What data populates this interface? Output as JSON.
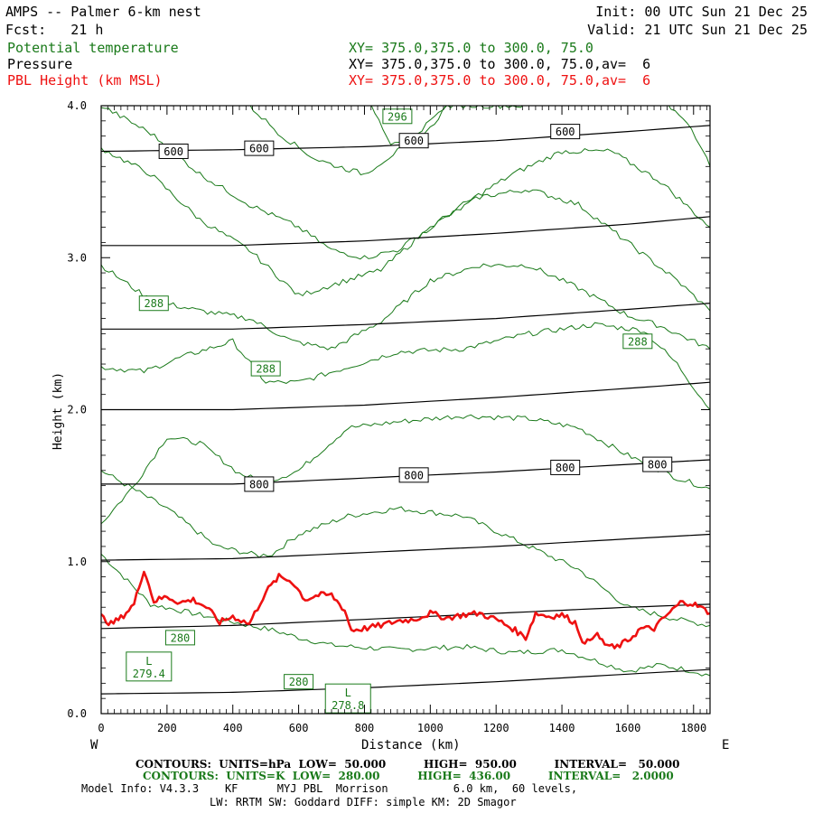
{
  "header": {
    "title": "AMPS -- Palmer 6-km nest",
    "init": "Init: 00 UTC Sun 21 Dec 25",
    "fcst": "Fcst:   21 h",
    "valid": "Valid: 21 UTC Sun 21 Dec 25",
    "field1_name": "Potential temperature",
    "field1_xy": "XY= 375.0,375.0 to 300.0, 75.0",
    "field2_name": "Pressure",
    "field2_xy": "XY= 375.0,375.0 to 300.0, 75.0,av=  6",
    "field3_name": "PBL Height (km MSL)",
    "field3_xy": "XY= 375.0,375.0 to 300.0, 75.0,av=  6"
  },
  "colors": {
    "theta": "#1a7a1a",
    "pressure": "#000000",
    "pbl": "#ee1111"
  },
  "chart_data": {
    "type": "line",
    "title": "AMPS -- Palmer 6-km nest",
    "xlabel": "Distance (km)",
    "ylabel": "Height (km)",
    "xlim": [
      0,
      1850
    ],
    "ylim": [
      0,
      4.0
    ],
    "x_ticks": [
      0,
      200,
      400,
      600,
      800,
      1000,
      1200,
      1400,
      1600,
      1800
    ],
    "y_ticks": [
      0.0,
      1.0,
      2.0,
      3.0,
      4.0
    ],
    "y_tick_labels": [
      "0.0",
      "1.0",
      "2.0",
      "3.0",
      "4.0"
    ],
    "x_end_labels": {
      "left": "W",
      "right": "E"
    },
    "pressure_contours": [
      {
        "label": "",
        "x": [
          0,
          400,
          800,
          1200,
          1600,
          1850
        ],
        "y": [
          0.13,
          0.14,
          0.17,
          0.21,
          0.26,
          0.29
        ]
      },
      {
        "label": "",
        "x": [
          0,
          400,
          800,
          1200,
          1600,
          1850
        ],
        "y": [
          0.56,
          0.58,
          0.62,
          0.66,
          0.7,
          0.72
        ]
      },
      {
        "label": "",
        "x": [
          0,
          400,
          800,
          1200,
          1600,
          1850
        ],
        "y": [
          1.01,
          1.02,
          1.06,
          1.1,
          1.15,
          1.18
        ]
      },
      {
        "label": "800",
        "x": [
          0,
          400,
          800,
          1200,
          1600,
          1850
        ],
        "y": [
          1.51,
          1.51,
          1.55,
          1.59,
          1.64,
          1.67
        ]
      },
      {
        "label": "",
        "x": [
          0,
          400,
          800,
          1200,
          1600,
          1850
        ],
        "y": [
          2.0,
          2.0,
          2.03,
          2.08,
          2.14,
          2.18
        ]
      },
      {
        "label": "",
        "x": [
          0,
          400,
          800,
          1200,
          1600,
          1850
        ],
        "y": [
          2.53,
          2.53,
          2.56,
          2.6,
          2.66,
          2.7
        ]
      },
      {
        "label": "",
        "x": [
          0,
          400,
          800,
          1200,
          1600,
          1850
        ],
        "y": [
          3.08,
          3.08,
          3.11,
          3.16,
          3.22,
          3.27
        ]
      },
      {
        "label": "600",
        "x": [
          0,
          400,
          800,
          1200,
          1600,
          1850
        ],
        "y": [
          3.7,
          3.71,
          3.73,
          3.77,
          3.83,
          3.87
        ]
      }
    ],
    "pressure_labels": [
      {
        "text": "600",
        "x": 220,
        "y": 3.7
      },
      {
        "text": "600",
        "x": 480,
        "y": 3.72
      },
      {
        "text": "600",
        "x": 950,
        "y": 3.77
      },
      {
        "text": "600",
        "x": 1410,
        "y": 3.83
      },
      {
        "text": "800",
        "x": 480,
        "y": 1.51
      },
      {
        "text": "800",
        "x": 950,
        "y": 1.57
      },
      {
        "text": "800",
        "x": 1410,
        "y": 1.62
      },
      {
        "text": "800",
        "x": 1690,
        "y": 1.64
      }
    ],
    "theta_contours": [
      {
        "x": [
          0,
          150,
          300,
          450,
          520,
          600,
          700,
          900,
          1100,
          1250,
          1400,
          1500,
          1600,
          1700,
          1800,
          1850
        ],
        "y": [
          1.05,
          0.72,
          0.65,
          0.58,
          0.55,
          0.5,
          0.45,
          0.42,
          0.44,
          0.4,
          0.42,
          0.35,
          0.28,
          0.32,
          0.28,
          0.25
        ]
      },
      {
        "x": [
          0,
          200,
          350,
          480,
          520,
          600,
          750,
          900,
          1100,
          1300,
          1450,
          1600,
          1750,
          1850
        ],
        "y": [
          1.6,
          1.35,
          1.1,
          1.04,
          1.05,
          1.18,
          1.3,
          1.35,
          1.3,
          1.1,
          0.95,
          0.7,
          0.62,
          0.58
        ]
      },
      {
        "x": [
          0,
          100,
          200,
          300,
          420,
          500,
          600,
          750,
          900,
          1100,
          1300,
          1450,
          1600,
          1750,
          1850
        ],
        "y": [
          1.25,
          1.5,
          1.82,
          1.78,
          1.58,
          1.52,
          1.6,
          1.88,
          1.92,
          1.96,
          1.94,
          1.88,
          1.7,
          1.55,
          1.48
        ]
      },
      {
        "x": [
          0,
          130,
          250,
          400,
          500,
          600,
          750,
          900,
          1100,
          1300,
          1500,
          1650,
          1750,
          1850
        ],
        "y": [
          2.28,
          2.25,
          2.35,
          2.45,
          2.18,
          2.18,
          2.28,
          2.38,
          2.4,
          2.5,
          2.56,
          2.52,
          2.3,
          2.0
        ]
      },
      {
        "x": [
          0,
          150,
          300,
          450,
          580,
          700,
          850,
          1000,
          1150,
          1300,
          1450,
          1600,
          1700,
          1850
        ],
        "y": [
          2.95,
          2.72,
          2.65,
          2.6,
          2.45,
          2.4,
          2.58,
          2.85,
          2.95,
          2.95,
          2.8,
          2.62,
          2.55,
          2.4
        ]
      },
      {
        "x": [
          0,
          150,
          300,
          450,
          600,
          700,
          850,
          1000,
          1150,
          1300,
          1450,
          1600,
          1750,
          1850
        ],
        "y": [
          3.72,
          3.55,
          3.25,
          3.05,
          2.75,
          2.82,
          2.92,
          3.2,
          3.4,
          3.45,
          3.35,
          3.1,
          2.85,
          2.65
        ]
      },
      {
        "x": [
          0,
          150,
          300,
          450,
          600,
          700,
          800,
          900,
          1000,
          1100,
          1250,
          1400,
          1550,
          1700,
          1850
        ],
        "y": [
          4.0,
          3.82,
          3.55,
          3.35,
          3.2,
          3.05,
          3.0,
          3.05,
          3.2,
          3.35,
          3.55,
          3.7,
          3.7,
          3.5,
          3.2
        ]
      },
      {
        "x": [
          450,
          550,
          650,
          720,
          800,
          900,
          1000,
          1050,
          1100,
          1200,
          1300
        ],
        "y": [
          4.0,
          3.8,
          3.65,
          3.6,
          3.55,
          3.7,
          3.85,
          4.0,
          4.0,
          4.0,
          4.0
        ]
      },
      {
        "x": [
          820,
          880,
          950,
          1000,
          1050
        ],
        "y": [
          4.0,
          3.75,
          3.8,
          3.9,
          4.0
        ]
      },
      {
        "x": [
          1720,
          1780,
          1820,
          1850
        ],
        "y": [
          4.0,
          3.9,
          3.75,
          3.6
        ]
      }
    ],
    "theta_labels": [
      {
        "text": "296",
        "x": 900,
        "y": 3.93
      },
      {
        "text": "288",
        "x": 160,
        "y": 2.7
      },
      {
        "text": "288",
        "x": 500,
        "y": 2.27
      },
      {
        "text": "288",
        "x": 1630,
        "y": 2.45
      },
      {
        "text": "280",
        "x": 240,
        "y": 0.5
      },
      {
        "text": "280",
        "x": 600,
        "y": 0.21
      }
    ],
    "lows": [
      {
        "label": "L",
        "value": "279.4",
        "x": 145,
        "y": 0.31
      },
      {
        "label": "L",
        "value": "278.8",
        "x": 750,
        "y": 0.1
      }
    ],
    "pbl_height": {
      "x": [
        0,
        30,
        60,
        100,
        130,
        160,
        200,
        240,
        280,
        320,
        360,
        400,
        450,
        500,
        540,
        580,
        620,
        660,
        700,
        740,
        760,
        800,
        850,
        900,
        950,
        1000,
        1050,
        1100,
        1150,
        1200,
        1250,
        1290,
        1320,
        1360,
        1400,
        1440,
        1470,
        1500,
        1530,
        1560,
        1600,
        1640,
        1680,
        1720,
        1760,
        1790,
        1820,
        1850
      ],
      "y": [
        0.64,
        0.59,
        0.63,
        0.72,
        0.95,
        0.74,
        0.77,
        0.73,
        0.75,
        0.7,
        0.6,
        0.64,
        0.59,
        0.8,
        0.9,
        0.87,
        0.75,
        0.78,
        0.78,
        0.68,
        0.55,
        0.56,
        0.58,
        0.61,
        0.62,
        0.66,
        0.63,
        0.65,
        0.66,
        0.62,
        0.56,
        0.5,
        0.66,
        0.64,
        0.65,
        0.6,
        0.45,
        0.53,
        0.46,
        0.43,
        0.48,
        0.56,
        0.56,
        0.65,
        0.73,
        0.73,
        0.7,
        0.66
      ]
    }
  },
  "footer": {
    "p_contours": "CONTOURS:  UNITS=hPa  LOW=  50.000          HIGH=  950.00          INTERVAL=   50.000",
    "t_contours": "CONTOURS:  UNITS=K  LOW=  280.00          HIGH=  436.00          INTERVAL=   2.0000",
    "model_info": "Model Info: V4.3.3    KF      MYJ PBL  Morrison          6.0 km,  60 levels,",
    "physics": "LW: RRTM SW: Goddard DIFF: simple KM: 2D Smagor"
  }
}
